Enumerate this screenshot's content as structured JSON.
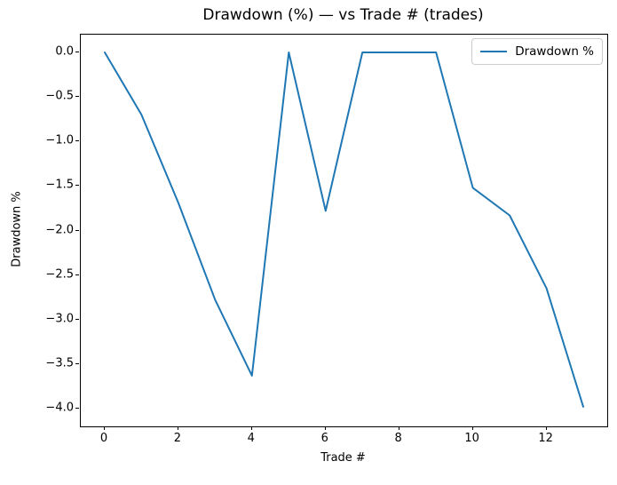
{
  "chart_data": {
    "type": "line",
    "title": "Drawdown (%) — vs Trade # (trades)",
    "xlabel": "Trade #",
    "ylabel": "Drawdown %",
    "legend_entries": [
      "Drawdown %"
    ],
    "legend_position": "upper right",
    "grid": false,
    "line_color": "#1f77b4",
    "line_width": 2,
    "x": [
      0,
      1,
      2,
      3,
      4,
      5,
      6,
      7,
      8,
      9,
      10,
      11,
      12,
      13
    ],
    "series": [
      {
        "name": "Drawdown %",
        "values": [
          0.0,
          -0.7,
          -1.69,
          -2.78,
          -3.63,
          0.0,
          -1.78,
          0.0,
          0.0,
          0.0,
          -1.52,
          -1.83,
          -2.65,
          -3.98
        ]
      }
    ],
    "xlim": [
      -0.65,
      13.65
    ],
    "ylim": [
      -4.2,
      0.2
    ],
    "xticks": {
      "values": [
        0,
        2,
        4,
        6,
        8,
        10,
        12
      ],
      "labels": [
        "0",
        "2",
        "4",
        "6",
        "8",
        "10",
        "12"
      ]
    },
    "yticks": {
      "values": [
        0.0,
        -0.5,
        -1.0,
        -1.5,
        -2.0,
        -2.5,
        -3.0,
        -3.5,
        -4.0
      ],
      "labels": [
        "0.0",
        "−0.5",
        "−1.0",
        "−1.5",
        "−2.0",
        "−2.5",
        "−3.0",
        "−3.5",
        "−4.0"
      ]
    }
  }
}
